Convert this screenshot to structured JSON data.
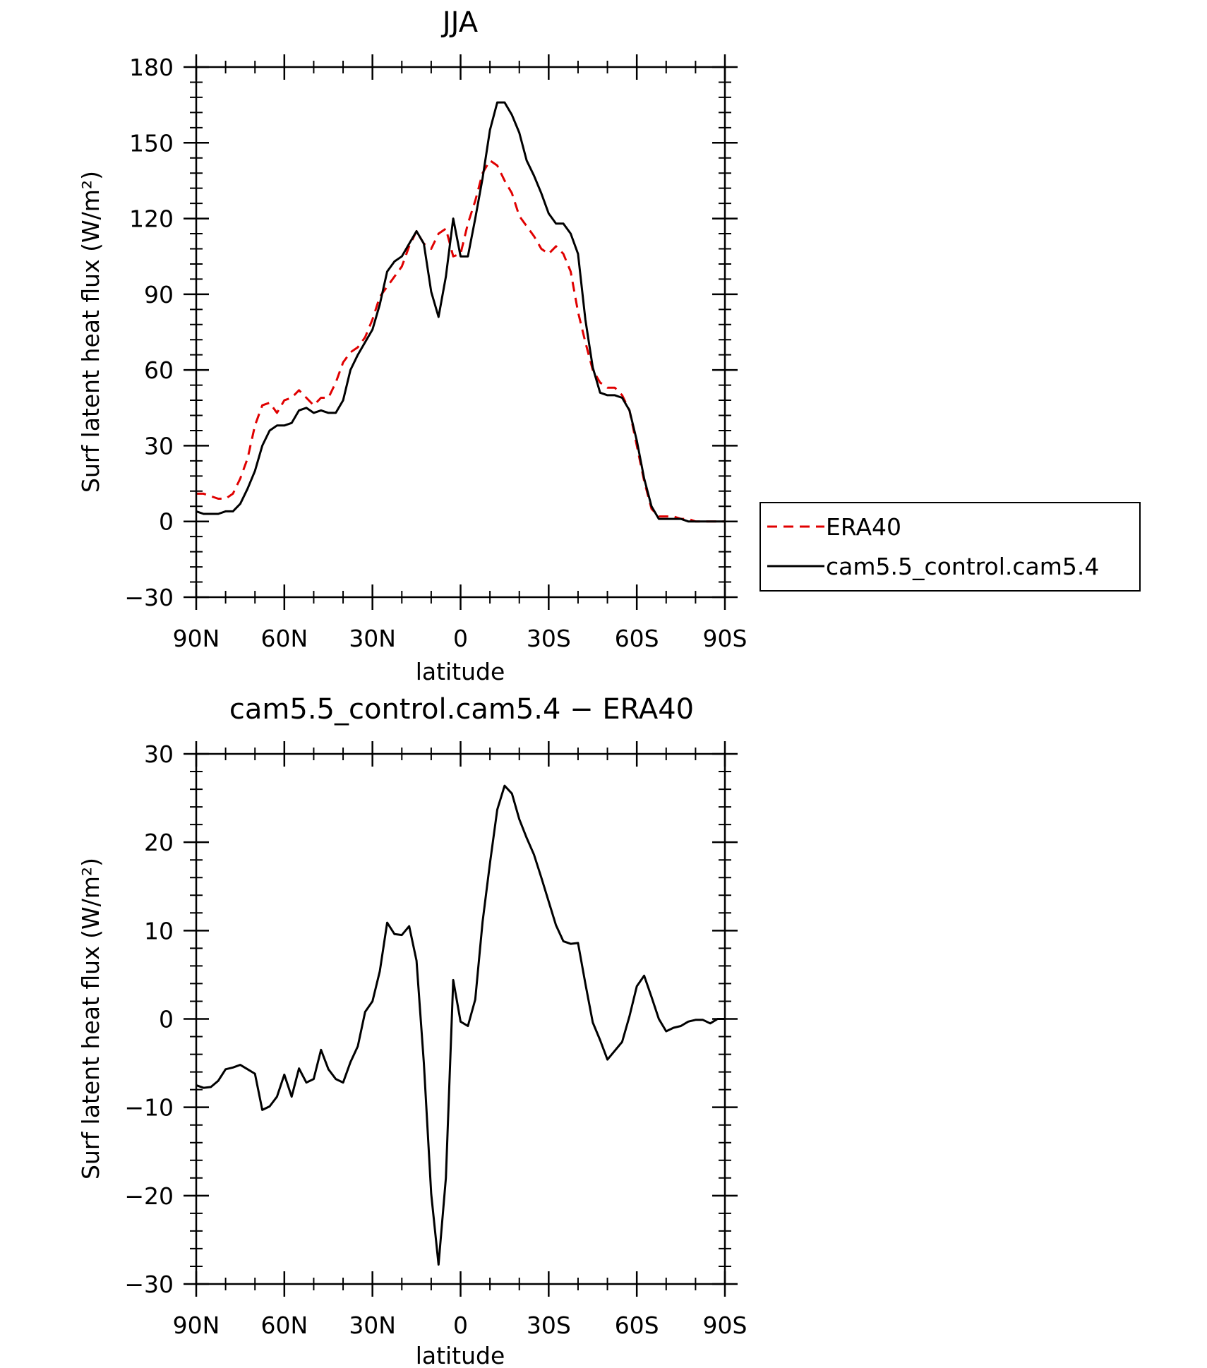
{
  "colors": {
    "era40": "#e00000",
    "model": "#000000",
    "axes": "#000000",
    "background": "#ffffff"
  },
  "chart_data": [
    {
      "type": "line",
      "title": "JJA",
      "xlabel": "latitude",
      "ylabel": "Surf latent heat flux (W/m²)",
      "xlim": [
        -90,
        90
      ],
      "ylim": [
        -30,
        180
      ],
      "x_direction": "north-to-south",
      "x_ticks": [
        -90,
        -60,
        -30,
        0,
        30,
        60,
        90
      ],
      "x_tick_labels": [
        "90N",
        "60N",
        "30N",
        "0",
        "30S",
        "60S",
        "90S"
      ],
      "y_ticks": [
        -30,
        0,
        30,
        60,
        90,
        120,
        150,
        180
      ],
      "y_tick_labels": [
        "−30",
        "0",
        "30",
        "60",
        "90",
        "120",
        "150",
        "180"
      ],
      "legend_position": "outside-right",
      "grid": false,
      "series": [
        {
          "name": "ERA40",
          "style": "dashed",
          "x": [
            -90,
            -87.5,
            -85,
            -82.5,
            -80,
            -77.5,
            -75,
            -72.5,
            -70,
            -67.5,
            -65,
            -62.5,
            -60,
            -57.5,
            -55,
            -52.5,
            -50,
            -47.5,
            -45,
            -42.5,
            -40,
            -37.5,
            -35,
            -32.5,
            -30,
            -27.5,
            -25,
            -22.5,
            -20,
            -17.5,
            -15,
            -12.5,
            -10,
            -7.5,
            -5,
            -2.5,
            0,
            2.5,
            5,
            7.5,
            10,
            12.5,
            15,
            17.5,
            20,
            22.5,
            25,
            27.5,
            30,
            32.5,
            35,
            37.5,
            40,
            42.5,
            45,
            47.5,
            50,
            52.5,
            55,
            57.5,
            60,
            62.5,
            65,
            67.5,
            70,
            72.5,
            75,
            77.5,
            80,
            82.5,
            85,
            87.5,
            90
          ],
          "y": [
            11,
            11,
            10,
            9,
            9,
            11,
            17,
            25,
            38,
            46,
            47,
            43,
            48,
            49,
            52,
            49,
            46,
            49,
            49,
            55,
            63,
            67,
            69,
            73,
            80,
            89,
            93,
            97,
            101,
            109,
            115,
            110,
            108,
            114,
            116,
            105,
            106,
            118,
            127,
            138,
            143,
            141,
            135,
            130,
            121,
            117,
            113,
            108,
            106,
            109,
            106,
            99,
            83,
            71,
            60,
            55,
            53,
            53,
            50,
            44,
            30,
            16,
            5,
            2,
            2,
            2,
            1,
            1,
            0,
            0,
            0,
            0,
            0
          ]
        },
        {
          "name": "cam5.5_control.cam5.4",
          "style": "solid",
          "x": [
            -90,
            -87.5,
            -85,
            -82.5,
            -80,
            -77.5,
            -75,
            -72.5,
            -70,
            -67.5,
            -65,
            -62.5,
            -60,
            -57.5,
            -55,
            -52.5,
            -50,
            -47.5,
            -45,
            -42.5,
            -40,
            -37.5,
            -35,
            -32.5,
            -30,
            -27.5,
            -25,
            -22.5,
            -20,
            -17.5,
            -15,
            -12.5,
            -10,
            -7.5,
            -5,
            -2.5,
            0,
            2.5,
            5,
            7.5,
            10,
            12.5,
            15,
            17.5,
            20,
            22.5,
            25,
            27.5,
            30,
            32.5,
            35,
            37.5,
            40,
            42.5,
            45,
            47.5,
            50,
            52.5,
            55,
            57.5,
            60,
            62.5,
            65,
            67.5,
            70,
            72.5,
            75,
            77.5,
            80,
            82.5,
            85,
            87.5,
            90
          ],
          "y": [
            4,
            3,
            3,
            3,
            4,
            4,
            7,
            13,
            20,
            30,
            36,
            38,
            38,
            39,
            44,
            45,
            43,
            44,
            43,
            43,
            48,
            60,
            66,
            71,
            76,
            86,
            99,
            103,
            105,
            110,
            115,
            110,
            91,
            81,
            97,
            120,
            105,
            105,
            120,
            136,
            155,
            166,
            166,
            161,
            154,
            143,
            137,
            130,
            122,
            118,
            118,
            114,
            106,
            80,
            61,
            51,
            50,
            50,
            49,
            44,
            32,
            17,
            6,
            1,
            1,
            1,
            1,
            0,
            0,
            0,
            0,
            0,
            0
          ]
        }
      ]
    },
    {
      "type": "line",
      "title": "cam5.5_control.cam5.4 − ERA40",
      "xlabel": "latitude",
      "ylabel": "Surf latent heat flux (W/m²)",
      "xlim": [
        -90,
        90
      ],
      "ylim": [
        -30,
        30
      ],
      "x_direction": "north-to-south",
      "x_ticks": [
        -90,
        -60,
        -30,
        0,
        30,
        60,
        90
      ],
      "x_tick_labels": [
        "90N",
        "60N",
        "30N",
        "0",
        "30S",
        "60S",
        "90S"
      ],
      "y_ticks": [
        -30,
        -20,
        -10,
        0,
        10,
        20,
        30
      ],
      "y_tick_labels": [
        "−30",
        "−20",
        "−10",
        "0",
        "10",
        "20",
        "30"
      ],
      "grid": false,
      "series": [
        {
          "style": "solid",
          "x": [
            -90,
            -87.5,
            -85,
            -82.5,
            -80,
            -77.5,
            -75,
            -72.5,
            -70,
            -67.5,
            -65,
            -62.5,
            -60,
            -57.5,
            -55,
            -52.5,
            -50,
            -47.5,
            -45,
            -42.5,
            -40,
            -37.5,
            -35,
            -32.5,
            -30,
            -27.5,
            -25,
            -22.5,
            -20,
            -17.5,
            -15,
            -12.5,
            -10,
            -7.5,
            -5,
            -2.5,
            0,
            2.5,
            5,
            7.5,
            10,
            12.5,
            15,
            17.5,
            20,
            22.5,
            25,
            27.5,
            30,
            32.5,
            35,
            37.5,
            40,
            42.5,
            45,
            47.5,
            50,
            52.5,
            55,
            57.5,
            60,
            62.5,
            65,
            67.5,
            70,
            72.5,
            75,
            77.5,
            80,
            82.5,
            85,
            87.5,
            90
          ],
          "y": [
            -7.5,
            -7.8,
            -7.7,
            -7,
            -5.7,
            -5.5,
            -5.2,
            -5.7,
            -6.2,
            -10.3,
            -9.9,
            -8.8,
            -6.3,
            -8.8,
            -5.6,
            -7.2,
            -6.8,
            -3.5,
            -5.7,
            -6.8,
            -7.2,
            -4.9,
            -3.1,
            0.8,
            2,
            5.4,
            10.9,
            9.6,
            9.5,
            10.5,
            6.6,
            -5,
            -19.8,
            -27.8,
            -18,
            4.4,
            -0.3,
            -0.8,
            2.2,
            11,
            17.6,
            23.7,
            26.4,
            25.5,
            22.6,
            20.5,
            18.6,
            16,
            13.3,
            10.6,
            8.8,
            8.5,
            8.6,
            4,
            -0.4,
            -2.4,
            -4.6,
            -3.6,
            -2.6,
            0.3,
            3.7,
            4.9,
            2.5,
            0,
            -1.4,
            -1,
            -0.8,
            -0.3,
            -0.1,
            -0.1,
            -0.5,
            0,
            0
          ]
        }
      ]
    }
  ]
}
